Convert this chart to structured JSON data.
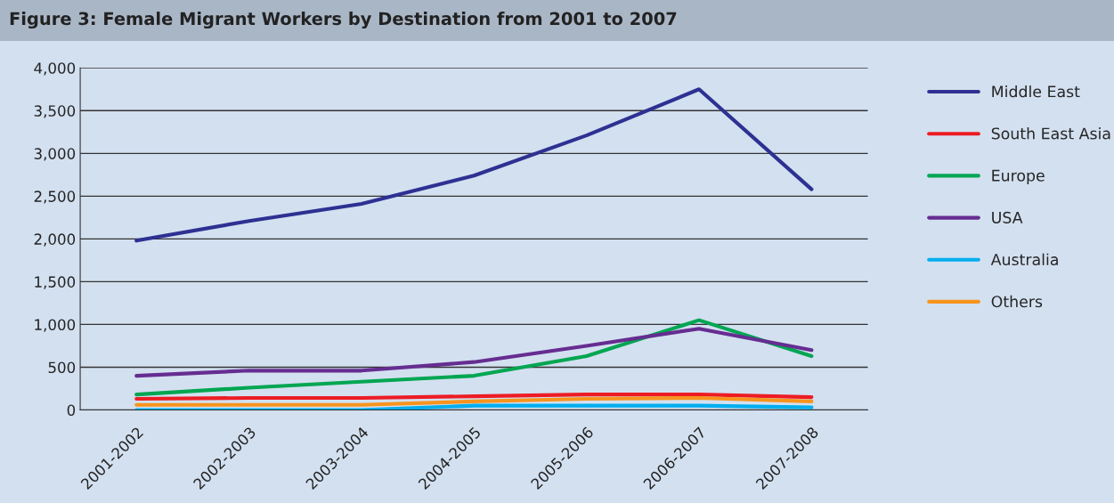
{
  "chart_data": {
    "type": "line",
    "title": "Figure 3: Female Migrant Workers by Destination from 2001 to 2007",
    "categories": [
      "2001-2002",
      "2002-2003",
      "2003-2004",
      "2004-2005",
      "2005-2006",
      "2006-2007",
      "2007-2008"
    ],
    "series": [
      {
        "name": "Middle East",
        "color": "#2e3192",
        "values": [
          1980,
          2210,
          2410,
          2740,
          3210,
          3750,
          2580
        ]
      },
      {
        "name": "South East Asia",
        "color": "#ed1c24",
        "values": [
          130,
          140,
          140,
          160,
          180,
          180,
          150
        ]
      },
      {
        "name": "Europe",
        "color": "#00a651",
        "values": [
          180,
          260,
          330,
          400,
          630,
          1050,
          630
        ]
      },
      {
        "name": "USA",
        "color": "#662d91",
        "values": [
          400,
          460,
          460,
          560,
          750,
          950,
          700
        ]
      },
      {
        "name": "Australia",
        "color": "#00aeef",
        "values": [
          0,
          0,
          0,
          50,
          50,
          50,
          30
        ]
      },
      {
        "name": "Others",
        "color": "#f7941d",
        "values": [
          60,
          60,
          60,
          100,
          130,
          140,
          100
        ]
      }
    ],
    "ylim": [
      0,
      4000
    ],
    "yticks": [
      {
        "value": 0,
        "label": "0"
      },
      {
        "value": 500,
        "label": "500"
      },
      {
        "value": 1000,
        "label": "1,000"
      },
      {
        "value": 1500,
        "label": "1,500"
      },
      {
        "value": 2000,
        "label": "2,000"
      },
      {
        "value": 2500,
        "label": "2,500"
      },
      {
        "value": 3000,
        "label": "3,000"
      },
      {
        "value": 3500,
        "label": "3,500"
      },
      {
        "value": 4000,
        "label": "4,000"
      }
    ],
    "grid": "y",
    "legend": "right",
    "marker": "none",
    "line_style": "solid"
  }
}
